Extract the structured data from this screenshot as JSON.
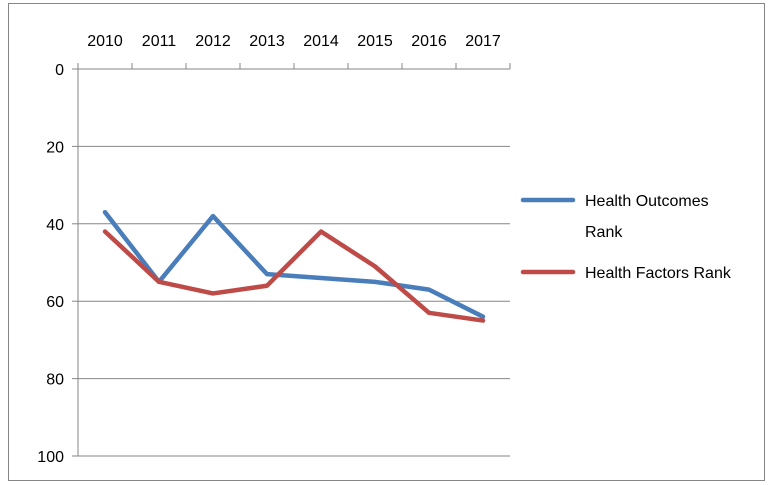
{
  "chart_data": {
    "type": "line",
    "title": "",
    "xlabel": "",
    "ylabel": "",
    "categories": [
      "2010",
      "2011",
      "2012",
      "2013",
      "2014",
      "2015",
      "2016",
      "2017"
    ],
    "ylim": [
      0,
      100
    ],
    "y_axis_reversed": true,
    "y_ticks": [
      0,
      20,
      40,
      60,
      80,
      100
    ],
    "x_axis_position": "top",
    "grid": "horizontal",
    "legend_position": "right",
    "series": [
      {
        "name": "Health Outcomes Rank",
        "color": "#4a7ebb",
        "values": [
          37,
          55,
          38,
          53,
          54,
          55,
          57,
          64
        ]
      },
      {
        "name": "Health Factors Rank",
        "color": "#be4b48",
        "values": [
          42,
          55,
          58,
          56,
          42,
          51,
          63,
          65
        ]
      }
    ]
  }
}
